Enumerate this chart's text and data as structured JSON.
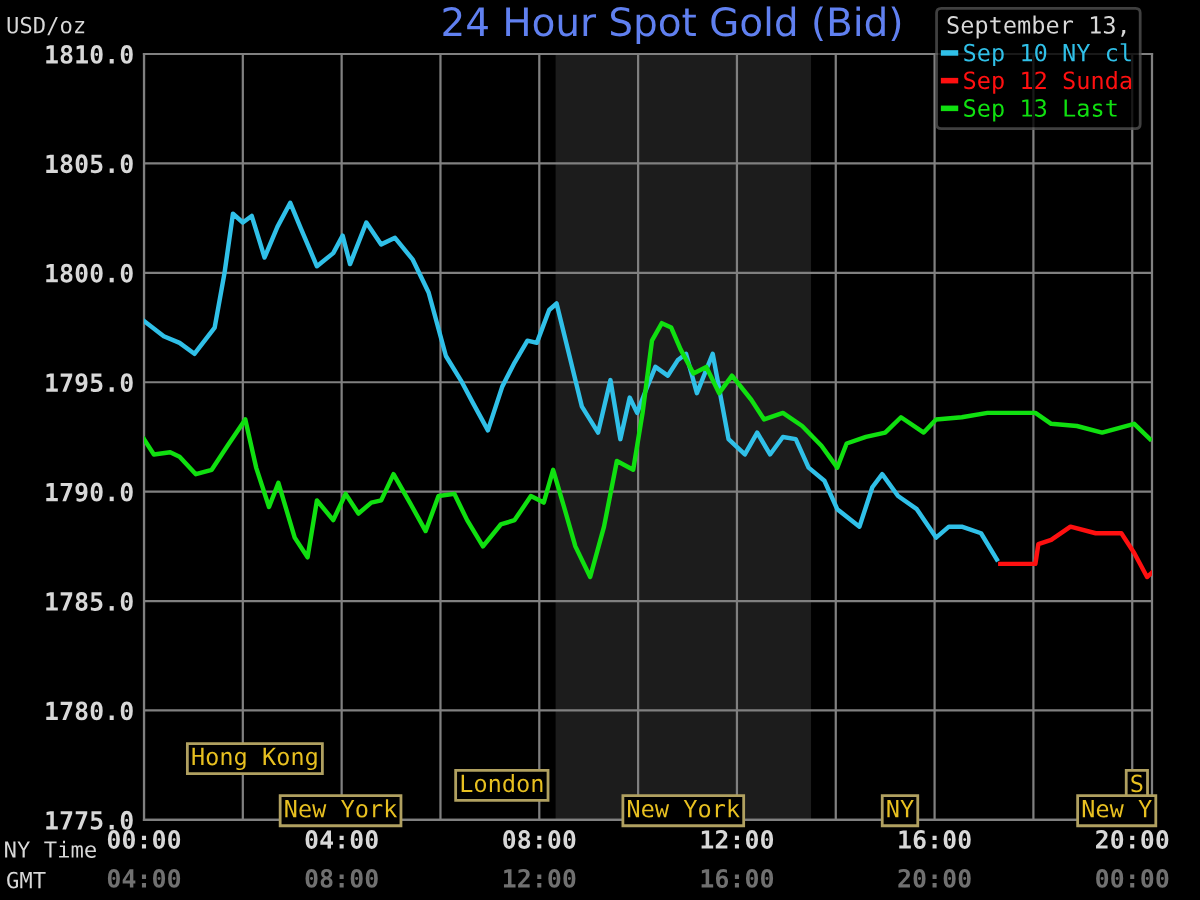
{
  "chart_data": {
    "type": "line",
    "title": "24 Hour Spot Gold (Bid)",
    "ylabel": "USD/oz",
    "xlabel": "NY Time",
    "x2label": "GMT",
    "legend_title": "September 13,",
    "legend": "top right",
    "series": [
      {
        "name": "Sep 10 NY cl",
        "color": "#30c0e8",
        "x": [
          0,
          0.4,
          0.72,
          1.02,
          1.43,
          1.63,
          1.8,
          2.0,
          2.18,
          2.44,
          2.7,
          2.96,
          3.18,
          3.5,
          3.83,
          4.02,
          4.17,
          4.5,
          4.8,
          5.08,
          5.44,
          5.76,
          6.11,
          6.41,
          6.67,
          6.96,
          7.25,
          7.5,
          7.76,
          7.95,
          8.2,
          8.35,
          8.6,
          8.86,
          9.19,
          9.44,
          9.64,
          9.83,
          9.98,
          10.15,
          10.35,
          10.6,
          10.8,
          10.97,
          11.19,
          11.51,
          11.83,
          12.16,
          12.41,
          12.67,
          12.93,
          13.19,
          13.45,
          13.77,
          14.03,
          14.48,
          14.74,
          14.94,
          15.26,
          15.64,
          16.03,
          16.29,
          16.55,
          16.94,
          17.26
        ],
        "values": [
          1797.8,
          1797.1,
          1796.8,
          1796.3,
          1797.5,
          1800.0,
          1802.7,
          1802.3,
          1802.6,
          1800.7,
          1802.1,
          1803.2,
          1802.0,
          1800.3,
          1800.9,
          1801.7,
          1800.4,
          1802.3,
          1801.3,
          1801.6,
          1800.6,
          1799.1,
          1796.2,
          1795.1,
          1794.0,
          1792.8,
          1794.8,
          1795.9,
          1796.9,
          1796.8,
          1798.3,
          1798.6,
          1796.3,
          1793.9,
          1792.7,
          1795.1,
          1792.4,
          1794.3,
          1793.6,
          1794.6,
          1795.7,
          1795.3,
          1796.0,
          1796.3,
          1794.5,
          1796.3,
          1792.4,
          1791.7,
          1792.7,
          1791.7,
          1792.5,
          1792.4,
          1791.1,
          1790.5,
          1789.2,
          1788.4,
          1790.2,
          1790.8,
          1789.8,
          1789.2,
          1787.9,
          1788.4,
          1788.4,
          1788.1,
          1786.9
        ]
      },
      {
        "name": "Sep 12 Sunda",
        "color": "#ff1010",
        "x": [
          17.33,
          18.04,
          18.1,
          18.36,
          18.75,
          19.26,
          19.78,
          20.04,
          20.3,
          20.4
        ],
        "values": [
          1786.7,
          1786.7,
          1787.6,
          1787.8,
          1788.4,
          1788.1,
          1788.1,
          1787.2,
          1786.1,
          1786.3
        ]
      },
      {
        "name": "Sep 13 Last",
        "color": "#10e010",
        "x": [
          0,
          0.2,
          0.53,
          0.72,
          1.05,
          1.37,
          1.69,
          2.05,
          2.27,
          2.53,
          2.72,
          3.05,
          3.31,
          3.5,
          3.83,
          4.08,
          4.34,
          4.6,
          4.8,
          5.05,
          5.38,
          5.7,
          5.96,
          6.28,
          6.54,
          6.86,
          7.22,
          7.5,
          7.83,
          8.09,
          8.28,
          8.54,
          8.73,
          9.03,
          9.31,
          9.57,
          9.9,
          10.09,
          10.28,
          10.48,
          10.67,
          10.86,
          11.12,
          11.38,
          11.64,
          11.9,
          12.29,
          12.55,
          12.93,
          13.32,
          13.71,
          14.03,
          14.22,
          14.61,
          15.0,
          15.32,
          15.78,
          16.03,
          16.55,
          17.07,
          18.04,
          18.36,
          18.88,
          19.39,
          20.04,
          20.36
        ],
        "values": [
          1792.4,
          1791.7,
          1791.8,
          1791.6,
          1790.8,
          1791.0,
          1792.1,
          1793.3,
          1791.1,
          1789.3,
          1790.4,
          1787.9,
          1787.0,
          1789.6,
          1788.7,
          1789.9,
          1789.0,
          1789.5,
          1789.6,
          1790.8,
          1789.5,
          1788.2,
          1789.8,
          1789.9,
          1788.7,
          1787.5,
          1788.5,
          1788.7,
          1789.8,
          1789.5,
          1791.0,
          1789.0,
          1787.5,
          1786.1,
          1788.4,
          1791.4,
          1791.0,
          1793.6,
          1796.9,
          1797.7,
          1797.5,
          1796.5,
          1795.4,
          1795.7,
          1794.5,
          1795.3,
          1794.2,
          1793.3,
          1793.6,
          1793.0,
          1792.1,
          1791.1,
          1792.2,
          1792.5,
          1792.7,
          1793.4,
          1792.7,
          1793.3,
          1793.4,
          1793.6,
          1793.6,
          1793.1,
          1793.0,
          1792.7,
          1793.1,
          1792.4
        ]
      }
    ],
    "xlim": [
      0,
      20.4
    ],
    "xticks": [
      {
        "value": 0,
        "label": "00:00"
      },
      {
        "value": 2,
        "label": null
      },
      {
        "value": 4,
        "label": "04:00"
      },
      {
        "value": 6,
        "label": null
      },
      {
        "value": 8,
        "label": "08:00"
      },
      {
        "value": 10,
        "label": null
      },
      {
        "value": 12,
        "label": "12:00"
      },
      {
        "value": 14,
        "label": null
      },
      {
        "value": 16,
        "label": "16:00"
      },
      {
        "value": 18,
        "label": null
      },
      {
        "value": 20,
        "label": "20:00"
      }
    ],
    "x2lim": [
      4,
      24.4
    ],
    "x2ticks": [
      {
        "value": 4,
        "label": "04:00"
      },
      {
        "value": 8,
        "label": "08:00"
      },
      {
        "value": 12,
        "label": "12:00"
      },
      {
        "value": 16,
        "label": "16:00"
      },
      {
        "value": 20,
        "label": "20:00"
      },
      {
        "value": 24,
        "label": "00:00"
      }
    ],
    "ylim": [
      1775,
      1810
    ],
    "yticks": [
      {
        "value": 1775,
        "label": "1775.0"
      },
      {
        "value": 1780,
        "label": "1780.0"
      },
      {
        "value": 1785,
        "label": "1785.0"
      },
      {
        "value": 1790,
        "label": "1790.0"
      },
      {
        "value": 1795,
        "label": "1795.0"
      },
      {
        "value": 1800,
        "label": "1800.0"
      },
      {
        "value": 1805,
        "label": "1805.0"
      },
      {
        "value": 1810,
        "label": "1810.0"
      }
    ],
    "grid": true,
    "bands": [
      {
        "axis": "x",
        "from": 8.33,
        "to": 13.5,
        "color": "#1c1c1c"
      }
    ],
    "annotations": [
      "Hong Kong",
      "London",
      "New York",
      "New York",
      "NY",
      "S",
      "New Y"
    ]
  }
}
